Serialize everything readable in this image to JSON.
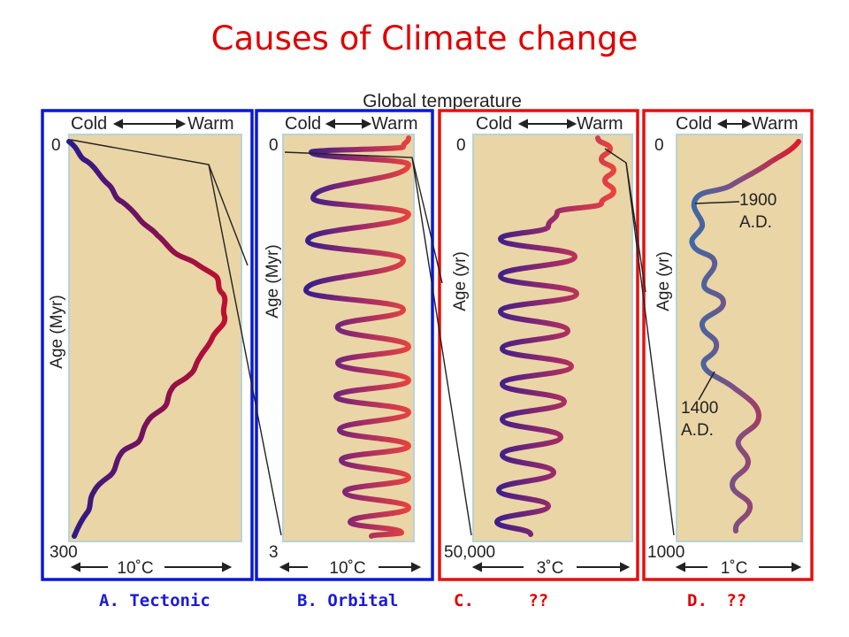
{
  "title": "Causes of Climate change",
  "header": "Global temperature",
  "colors": {
    "title": "#e00000",
    "blue_frame": "#0a18d8",
    "red_frame": "#e41010",
    "panel_fill": "#ead5a6",
    "panel_edge": "#b9d3d6",
    "curve_cold": "#2a1a8a",
    "curve_warm": "#f0403a",
    "label_blue": "#1a1ad8",
    "label_red": "#e00000"
  },
  "panels": [
    {
      "id": "a",
      "cold": "Cold",
      "warm": "Warm",
      "top": "0",
      "bottom": "300",
      "ylabel": "Age (Myr)",
      "scale": "10˚C",
      "frame": "blue",
      "caption": {
        "letter": "A.",
        "name": "Tectonic"
      }
    },
    {
      "id": "b",
      "cold": "Cold",
      "warm": "Warm",
      "top": "0",
      "bottom": "3",
      "ylabel": "Age (Myr)",
      "scale": "10˚C",
      "frame": "blue",
      "caption": {
        "letter": "B.",
        "name": "Orbital"
      }
    },
    {
      "id": "c",
      "cold": "Cold",
      "warm": "Warm",
      "top": "0",
      "bottom": "50,000",
      "ylabel": "Age (yr)",
      "scale": "3˚C",
      "frame": "red",
      "caption": {
        "letter": "C.",
        "name": "??"
      }
    },
    {
      "id": "d",
      "cold": "Cold",
      "warm": "Warm",
      "top": "0",
      "bottom": "1000",
      "ylabel": "Age (yr)",
      "scale": "1˚C",
      "frame": "red",
      "caption": {
        "letter": "D.",
        "name": "??"
      },
      "annotations": [
        {
          "l1": "1900",
          "l2": "A.D."
        },
        {
          "l1": "1400",
          "l2": "A.D."
        }
      ]
    }
  ]
}
